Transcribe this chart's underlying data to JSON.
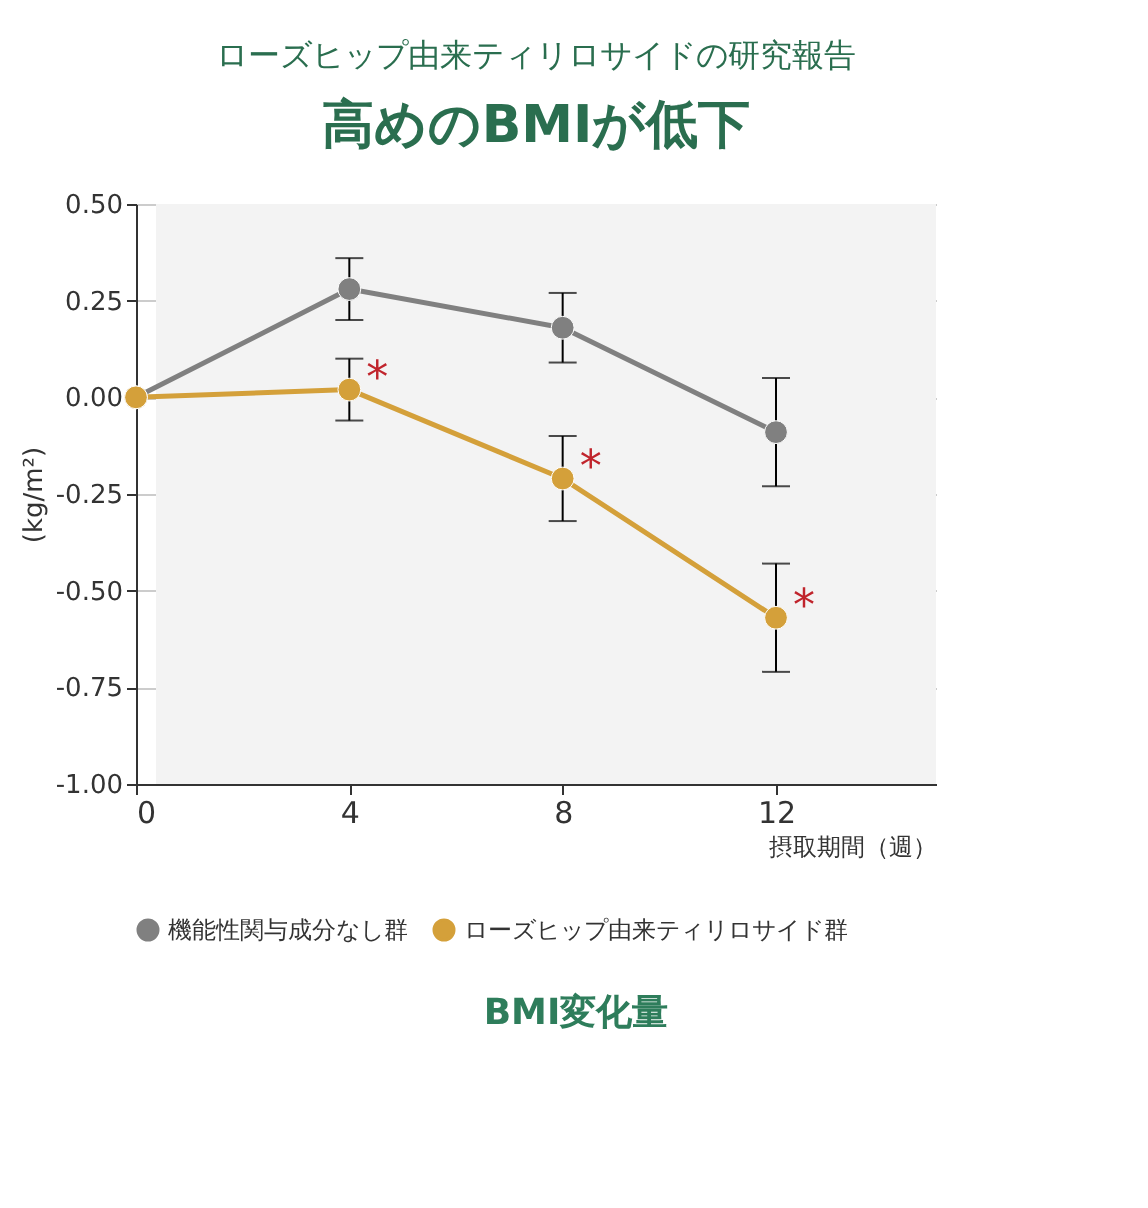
{
  "chart_data": {
    "type": "line",
    "title": "ローズヒップ由来ティリロサイドの研究報告",
    "subtitle": "高めのBMIが低下",
    "xlabel": "摂取期間（週）",
    "ylabel": "(kg/m²)",
    "x": [
      0,
      4,
      8,
      12
    ],
    "xlim": [
      0,
      15
    ],
    "xticks": [
      0,
      4,
      8,
      12
    ],
    "ylim": [
      -1.0,
      0.5
    ],
    "yticks": [
      {
        "value": 0.5,
        "label": "0.50"
      },
      {
        "value": 0.25,
        "label": "0.25"
      },
      {
        "value": 0,
        "label": "0.00"
      },
      {
        "value": -0.25,
        "label": "-0.25"
      },
      {
        "value": -0.5,
        "label": "-0.50"
      },
      {
        "value": -0.75,
        "label": "-0.75"
      },
      {
        "value": -1.0,
        "label": "-1.00"
      }
    ],
    "series": [
      {
        "name": "機能性関与成分なし群",
        "color": "#808080",
        "values": [
          0,
          0.28,
          0.18,
          -0.09
        ],
        "errors": [
          null,
          0.08,
          0.09,
          0.14
        ]
      },
      {
        "name": "ローズヒップ由来ティリロサイド群",
        "color": "#d4a03a",
        "values": [
          0,
          0.02,
          -0.21,
          -0.57
        ],
        "errors": [
          null,
          0.08,
          0.11,
          0.14
        ]
      }
    ],
    "annotations": [
      {
        "text": "*",
        "x": 4,
        "y": 0.02
      },
      {
        "text": "*",
        "x": 8,
        "y": -0.21
      },
      {
        "text": "*",
        "x": 12,
        "y": -0.57
      },
      "BMI変化量"
    ],
    "grid": "y",
    "legend": "bottom",
    "marker": "circle",
    "line_style": "solid"
  }
}
